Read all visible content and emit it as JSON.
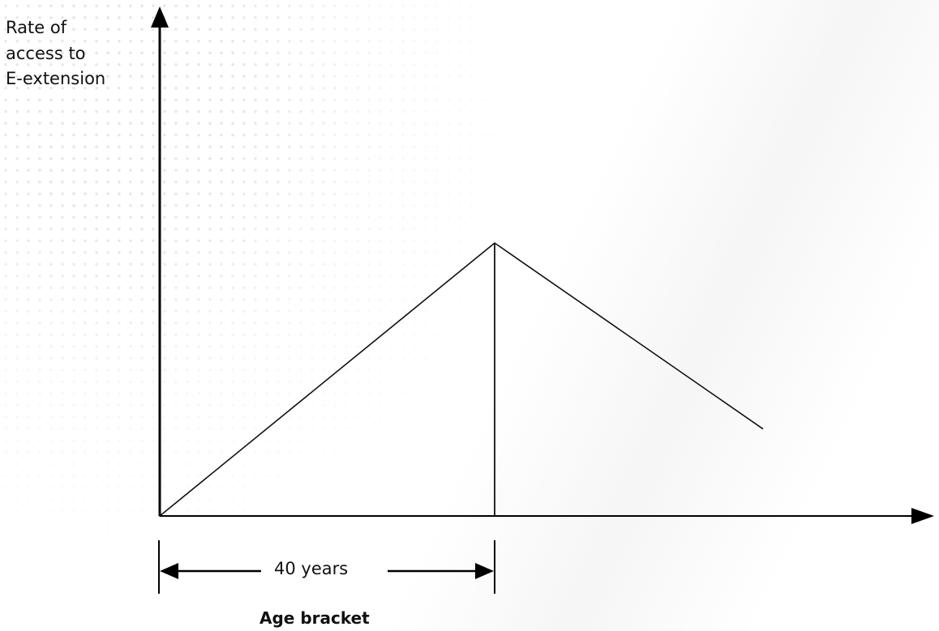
{
  "chart_data": {
    "type": "line",
    "title": "",
    "xlabel": "Age bracket",
    "ylabel": "Rate of\naccess to\nE-extension",
    "series": [
      {
        "points": [
          {
            "x": 0,
            "y": 0
          },
          {
            "x": 40,
            "y": 1
          },
          {
            "x": 72,
            "y": 0.32
          }
        ]
      }
    ],
    "reference_line": {
      "x": 40
    },
    "annotations": [
      {
        "text": "40 years",
        "from_x": 0,
        "to_x": 40
      }
    ],
    "grid": false,
    "legend": "none",
    "colors": {
      "line": "#111111",
      "axis": "#000000",
      "text": "#111111",
      "dots": "#e6e6e6"
    }
  }
}
